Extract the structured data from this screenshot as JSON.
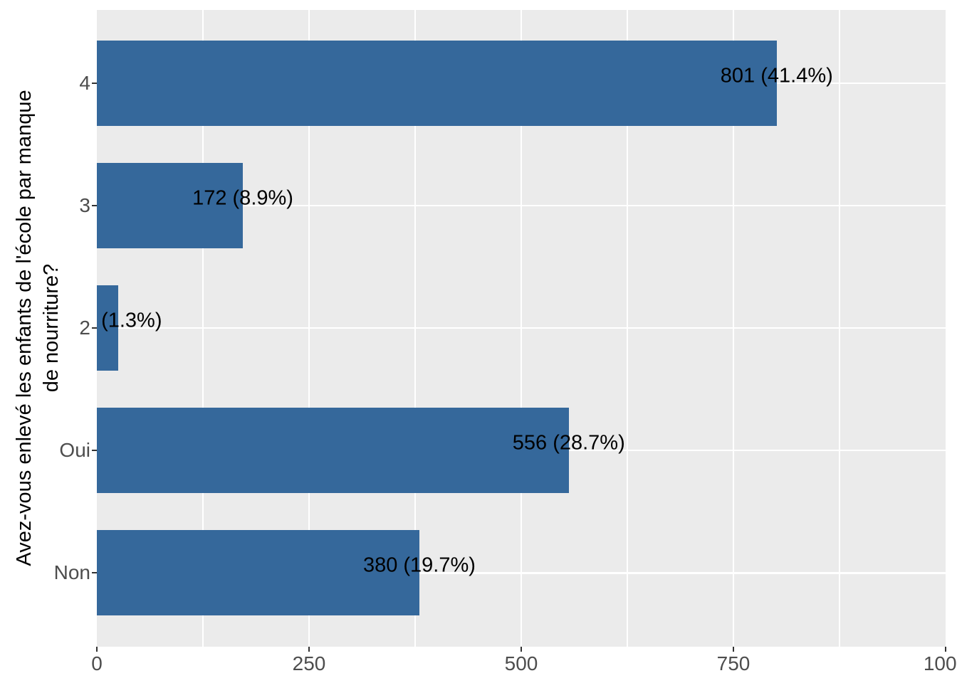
{
  "chart_data": {
    "type": "bar",
    "orientation": "horizontal",
    "title": "",
    "xlabel": "",
    "ylabel_lines": [
      "Avez-vous enlevé les enfants de l'école par manque",
      "de nourriture?"
    ],
    "categories": [
      "4",
      "3",
      "2",
      "Oui",
      "Non"
    ],
    "bars": [
      {
        "category": "4",
        "value": 801,
        "percent": 41.4,
        "label": "801 (41.4%)",
        "label_dx": 0
      },
      {
        "category": "3",
        "value": 172,
        "percent": 8.9,
        "label": "172 (8.9%)",
        "label_dx": 0
      },
      {
        "category": "2",
        "value": 25,
        "percent": 1.3,
        "label": "(1.3%)",
        "label_dx": 19
      },
      {
        "category": "Oui",
        "value": 556,
        "percent": 28.7,
        "label": "556 (28.7%)",
        "label_dx": 0
      },
      {
        "category": "Non",
        "value": 380,
        "percent": 19.7,
        "label": "380 (19.7%)",
        "label_dx": 0
      }
    ],
    "x_axis": {
      "range": [
        0,
        1000
      ],
      "major_ticks": [
        0,
        250,
        500,
        750,
        1000
      ],
      "tick_labels": [
        "0",
        "250",
        "500",
        "750",
        "1000"
      ],
      "minor_gridlines": [
        125,
        375,
        625,
        875
      ]
    },
    "legend": null,
    "grid": "on",
    "colors": {
      "bar_fill": "#35689B",
      "panel_background": "#EBEBEB",
      "gridline": "#FFFFFF",
      "axis_text": "#4D4D4D",
      "tick_mark": "#333333",
      "bar_label_text": "#000000",
      "figure_background": "#FFFFFF"
    }
  }
}
